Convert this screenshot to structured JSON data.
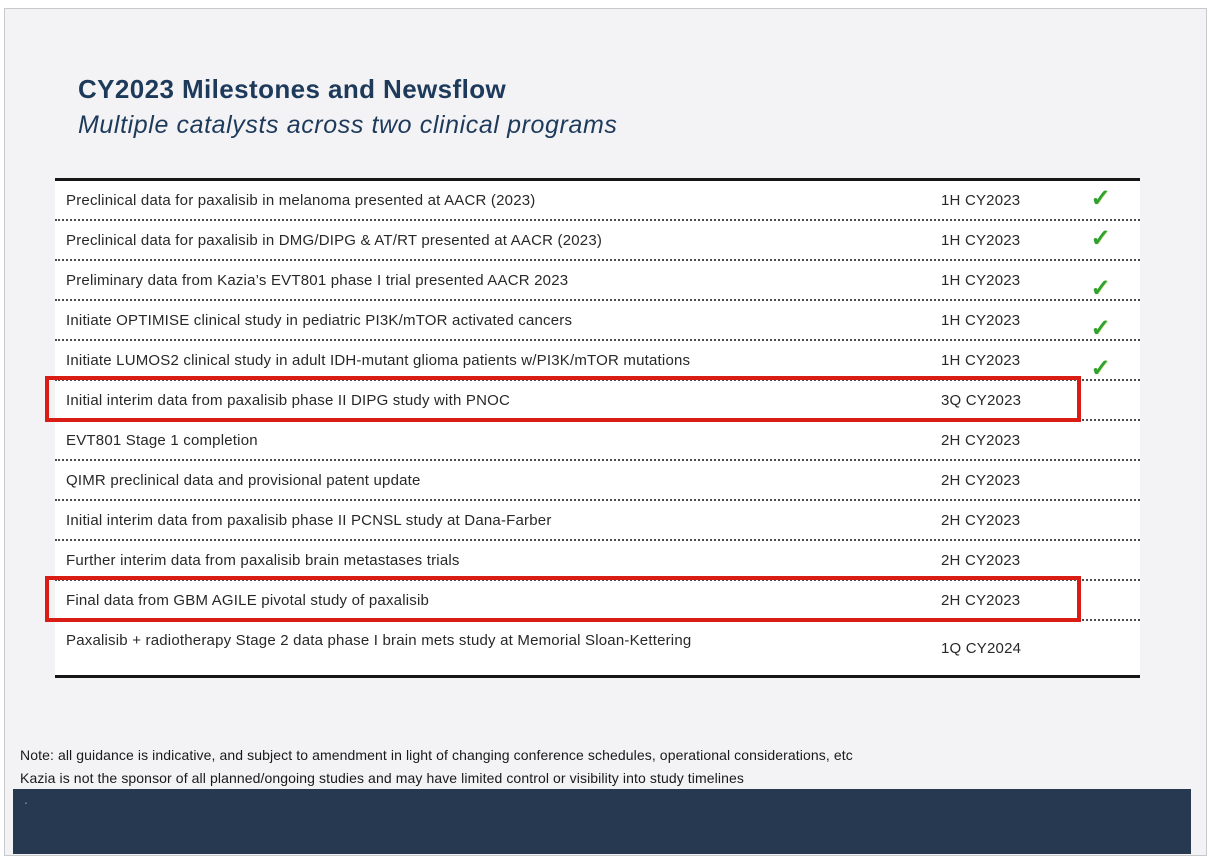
{
  "slide": {
    "title": "CY2023 Milestones and Newsflow",
    "subtitle": "Multiple catalysts across two clinical programs",
    "note_line1": "Note: all guidance is indicative, and subject to amendment in light of changing conference schedules, operational considerations, etc",
    "note_line2": "Kazia is not the sponsor of all planned/ongoing studies and may have limited control or visibility into study timelines",
    "footer_text": "."
  },
  "milestones": {
    "check_icon": "✓",
    "rows": [
      {
        "milestone": "Preclinical data for paxalisib in melanoma presented at AACR (2023)",
        "timing": "1H CY2023",
        "done": true,
        "check_align": "center",
        "highlighted": false
      },
      {
        "milestone": "Preclinical data for paxalisib in DMG/DIPG & AT/RT presented at AACR (2023)",
        "timing": "1H CY2023",
        "done": true,
        "check_align": "center",
        "highlighted": false
      },
      {
        "milestone": "Preliminary data from Kazia’s EVT801 phase I trial presented AACR 2023",
        "timing": "1H CY2023",
        "done": true,
        "check_align": "low",
        "highlighted": false
      },
      {
        "milestone": "Initiate OPTIMISE clinical study in pediatric PI3K/mTOR activated cancers",
        "timing": "1H CY2023",
        "done": true,
        "check_align": "low",
        "highlighted": false
      },
      {
        "milestone": "Initiate LUMOS2 clinical study in adult IDH-mutant glioma patients w/PI3K/mTOR mutations",
        "timing": "1H CY2023",
        "done": true,
        "check_align": "low",
        "highlighted": false
      },
      {
        "milestone": "Initial interim data from paxalisib phase II DIPG study with PNOC",
        "timing": "3Q CY2023",
        "done": false,
        "highlighted": true
      },
      {
        "milestone": "EVT801 Stage 1 completion",
        "timing": "2H CY2023",
        "done": false,
        "highlighted": false
      },
      {
        "milestone": "QIMR preclinical data and provisional patent update",
        "timing": "2H CY2023",
        "done": false,
        "highlighted": false
      },
      {
        "milestone": "Initial interim data from paxalisib phase II PCNSL study at Dana-Farber",
        "timing": "2H CY2023",
        "done": false,
        "highlighted": false
      },
      {
        "milestone": "Further interim data from paxalisib brain metastases trials",
        "timing": "2H CY2023",
        "done": false,
        "highlighted": false
      },
      {
        "milestone": "Final data from GBM AGILE pivotal study of paxalisib",
        "timing": "2H CY2023",
        "done": false,
        "highlighted": true
      },
      {
        "milestone": "Paxalisib + radiotherapy Stage 2 data phase I brain mets study at Memorial Sloan-Kettering",
        "timing": "1Q CY2024",
        "done": false,
        "highlighted": false,
        "tall": true
      }
    ]
  },
  "colors": {
    "accent_navy": "#1e3a5b",
    "highlight_red": "#d91d15",
    "check_green": "#2ea12e",
    "footer_bar": "#273950"
  }
}
